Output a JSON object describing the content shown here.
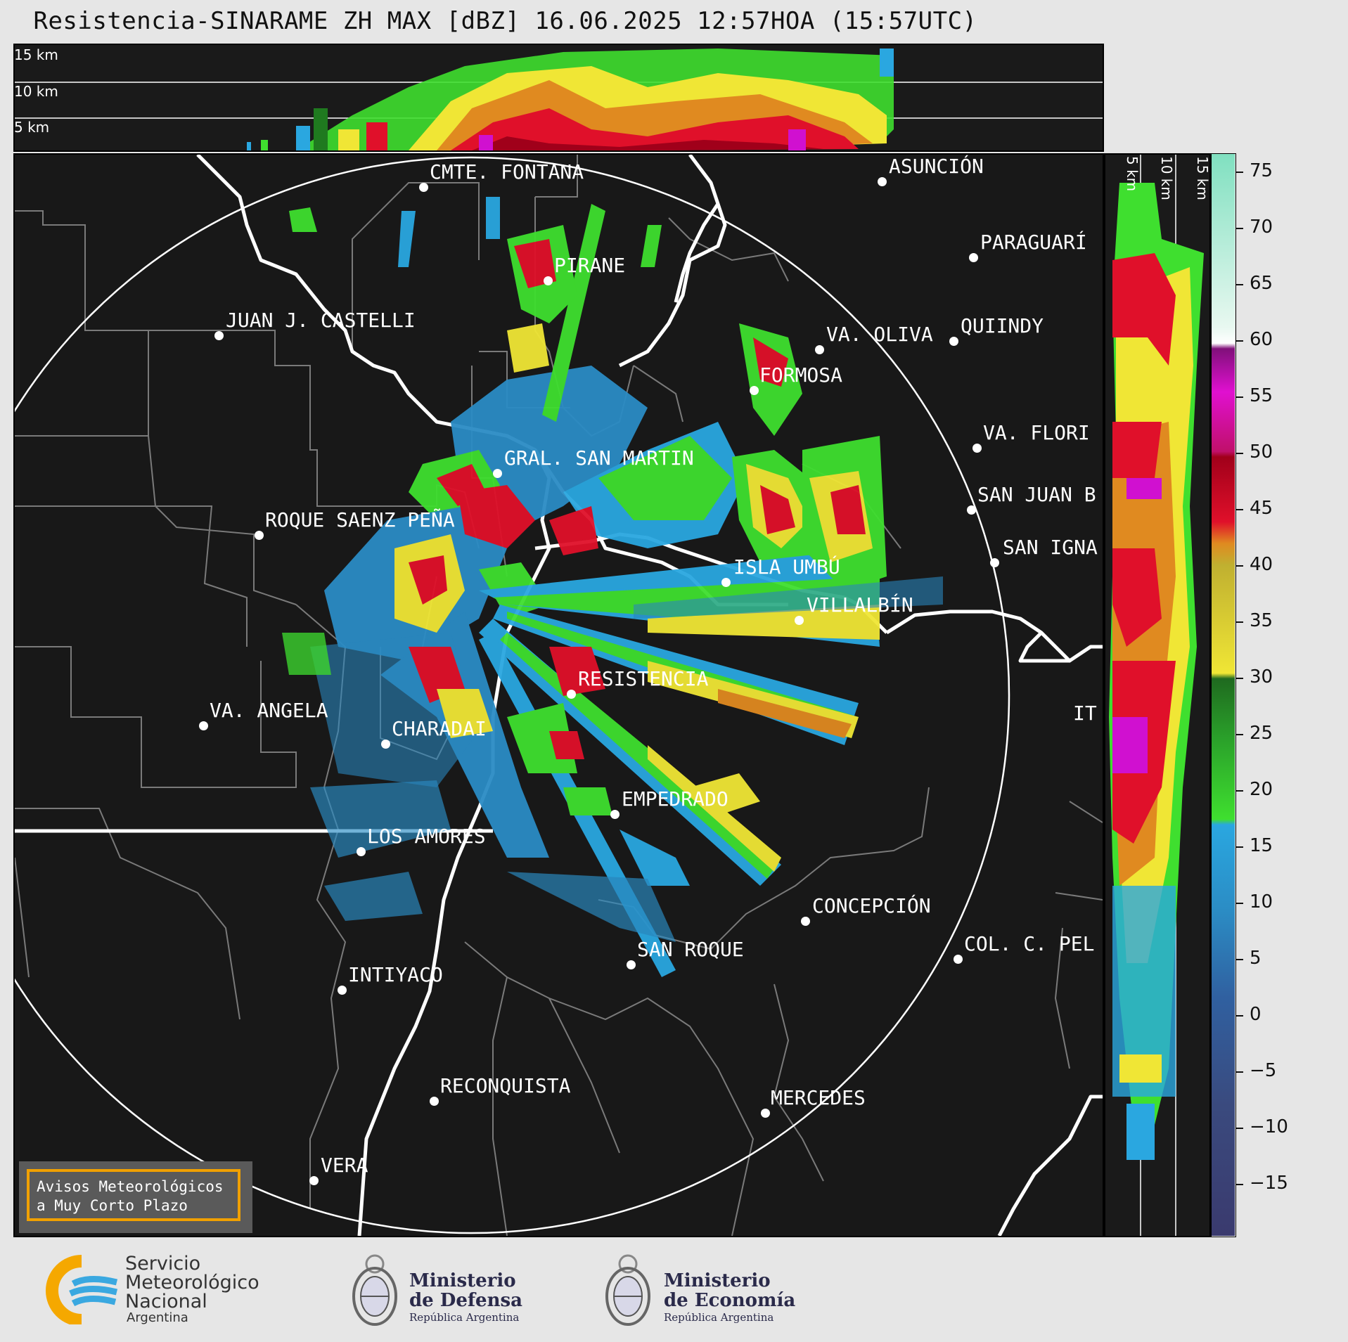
{
  "title": "Resistencia-SINARAME ZH MAX [dBZ] 16.06.2025 12:57HOA (15:57UTC)",
  "top_panel": {
    "altitude_labels": [
      "15 km",
      "10 km",
      "5 km"
    ]
  },
  "side_panel": {
    "altitude_labels": [
      "5 km",
      "10 km",
      "15 km"
    ]
  },
  "colorbar": {
    "unit": "dBZ",
    "ticks": [
      "75",
      "70",
      "65",
      "60",
      "55",
      "50",
      "45",
      "40",
      "35",
      "30",
      "25",
      "20",
      "15",
      "10",
      "5",
      "0",
      "−5",
      "−10",
      "−15"
    ],
    "colors": {
      "low": "#3a3a6e",
      "blue": "#2b8cc4",
      "cyan": "#2aa7e0",
      "green": "#3fdf2f",
      "dark_green": "#1f7a1f",
      "yellow": "#f0e635",
      "orange": "#e08a20",
      "red": "#e0102a",
      "dark_red": "#a0001a",
      "magenta": "#d010d0",
      "purple": "#80107a",
      "white": "#ffffff",
      "aqua": "#80e0c0"
    }
  },
  "map": {
    "cities": [
      {
        "name": "CMTE. FONTANA"
      },
      {
        "name": "ASUNCIÓN"
      },
      {
        "name": "PARAGUARÍ"
      },
      {
        "name": "PIRANE"
      },
      {
        "name": "JUAN J. CASTELLI"
      },
      {
        "name": "VA. OLIVA"
      },
      {
        "name": "QUIINDY"
      },
      {
        "name": "FORMOSA"
      },
      {
        "name": "VA. FLORI"
      },
      {
        "name": "GRAL. SAN MARTIN"
      },
      {
        "name": "SAN JUAN B"
      },
      {
        "name": "ROQUE SAENZ PEÑA"
      },
      {
        "name": "SAN IGNA"
      },
      {
        "name": "ISLA UMBÚ"
      },
      {
        "name": "VILLALBÍN"
      },
      {
        "name": "RESISTENCIA"
      },
      {
        "name": "VA. ANGELA"
      },
      {
        "name": "CHARADAI"
      },
      {
        "name": "IT"
      },
      {
        "name": "EMPEDRADO"
      },
      {
        "name": "LOS AMORES"
      },
      {
        "name": "CONCEPCIÓN"
      },
      {
        "name": "SAN ROQUE"
      },
      {
        "name": "COL. C. PEL"
      },
      {
        "name": "INTIYACO"
      },
      {
        "name": "RECONQUISTA"
      },
      {
        "name": "MERCEDES"
      },
      {
        "name": "VERA"
      }
    ]
  },
  "notice": {
    "line1": "Avisos Meteorológicos",
    "line2": "a Muy Corto Plazo"
  },
  "footer": {
    "smn": {
      "line1": "Servicio",
      "line2": "Meteorológico",
      "line3": "Nacional",
      "line4": "Argentina"
    },
    "defensa": {
      "line1": "Ministerio",
      "line2": "de Defensa",
      "line3": "República Argentina"
    },
    "economia": {
      "line1": "Ministerio",
      "line2": "de Economía",
      "line3": "República Argentina"
    }
  }
}
